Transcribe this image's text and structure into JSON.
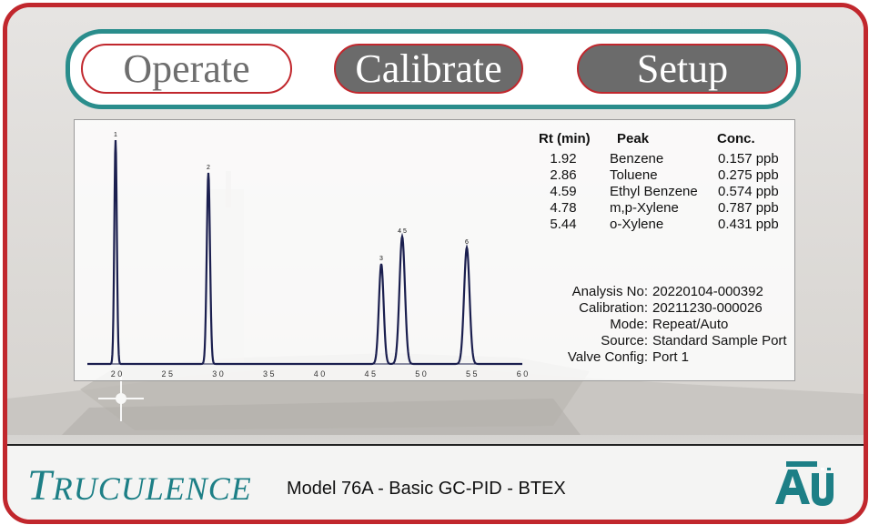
{
  "nav": {
    "operate_label": "Operate",
    "calibrate_label": "Calibrate",
    "setup_label": "Setup"
  },
  "results": {
    "headers": {
      "rt": "Rt (min)",
      "peak": "Peak",
      "conc": "Conc."
    },
    "rows": [
      {
        "rt": "1.92",
        "peak": "Benzene",
        "conc": "0.157 ppb"
      },
      {
        "rt": "2.86",
        "peak": "Toluene",
        "conc": "0.275 ppb"
      },
      {
        "rt": "4.59",
        "peak": "Ethyl Benzene",
        "conc": "0.574 ppb"
      },
      {
        "rt": "4.78",
        "peak": "m,p-Xylene",
        "conc": "0.787 ppb"
      },
      {
        "rt": "5.44",
        "peak": "o-Xylene",
        "conc": "0.431 ppb"
      }
    ]
  },
  "info": {
    "analysis_label": "Analysis No:",
    "analysis_value": "20220104-000392",
    "calibration_label": "Calibration:",
    "calibration_value": "20211230-000026",
    "mode_label": "Mode:",
    "mode_value": "Repeat/Auto",
    "source_label": "Source:",
    "source_value": "Standard Sample Port",
    "valve_label": "Valve Config:",
    "valve_value": "Port 1"
  },
  "chromatogram": {
    "x_ticks": [
      "2 0",
      "2 5",
      "3 0",
      "3 5",
      "4 0",
      "4 5",
      "5 0",
      "5 5",
      "6 0"
    ],
    "peak_labels": [
      "1",
      "2",
      "3",
      "4 5",
      "6"
    ]
  },
  "footer": {
    "brand_first": "T",
    "brand_rest": "RUCULENCE",
    "model_text": "Model 76A - Basic GC-PID - BTEX",
    "logo_text": "AU"
  },
  "colors": {
    "frame": "#c1272d",
    "nav_border": "#2a8d8c",
    "button_dark": "#6b6b6b",
    "trace": "#1b1f4f",
    "brand": "#1d7f86"
  }
}
